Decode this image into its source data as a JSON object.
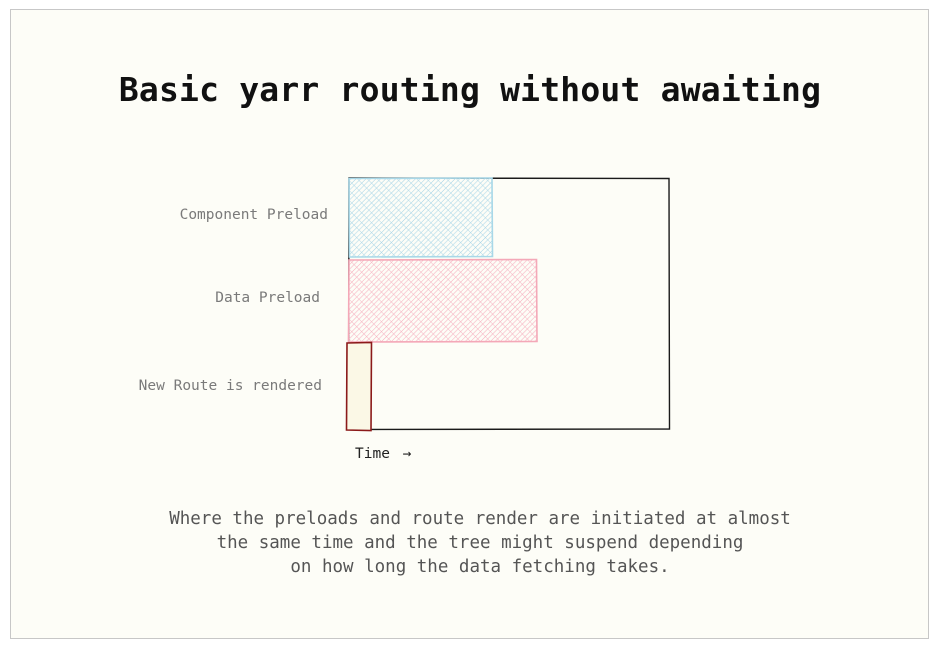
{
  "title": "Basic yarr routing without awaiting",
  "rows": [
    {
      "label": "Component Preload",
      "color": "#a8d8e8"
    },
    {
      "label": "Data Preload",
      "color": "#f4a8b8"
    },
    {
      "label": "New Route is rendered",
      "color": "#8b1a1a"
    }
  ],
  "axis": {
    "label": "Time",
    "arrow": "→"
  },
  "caption": [
    "Where the preloads and route render are initiated at almost",
    "the same time and the tree might suspend depending",
    "on how long the data fetching takes."
  ]
}
